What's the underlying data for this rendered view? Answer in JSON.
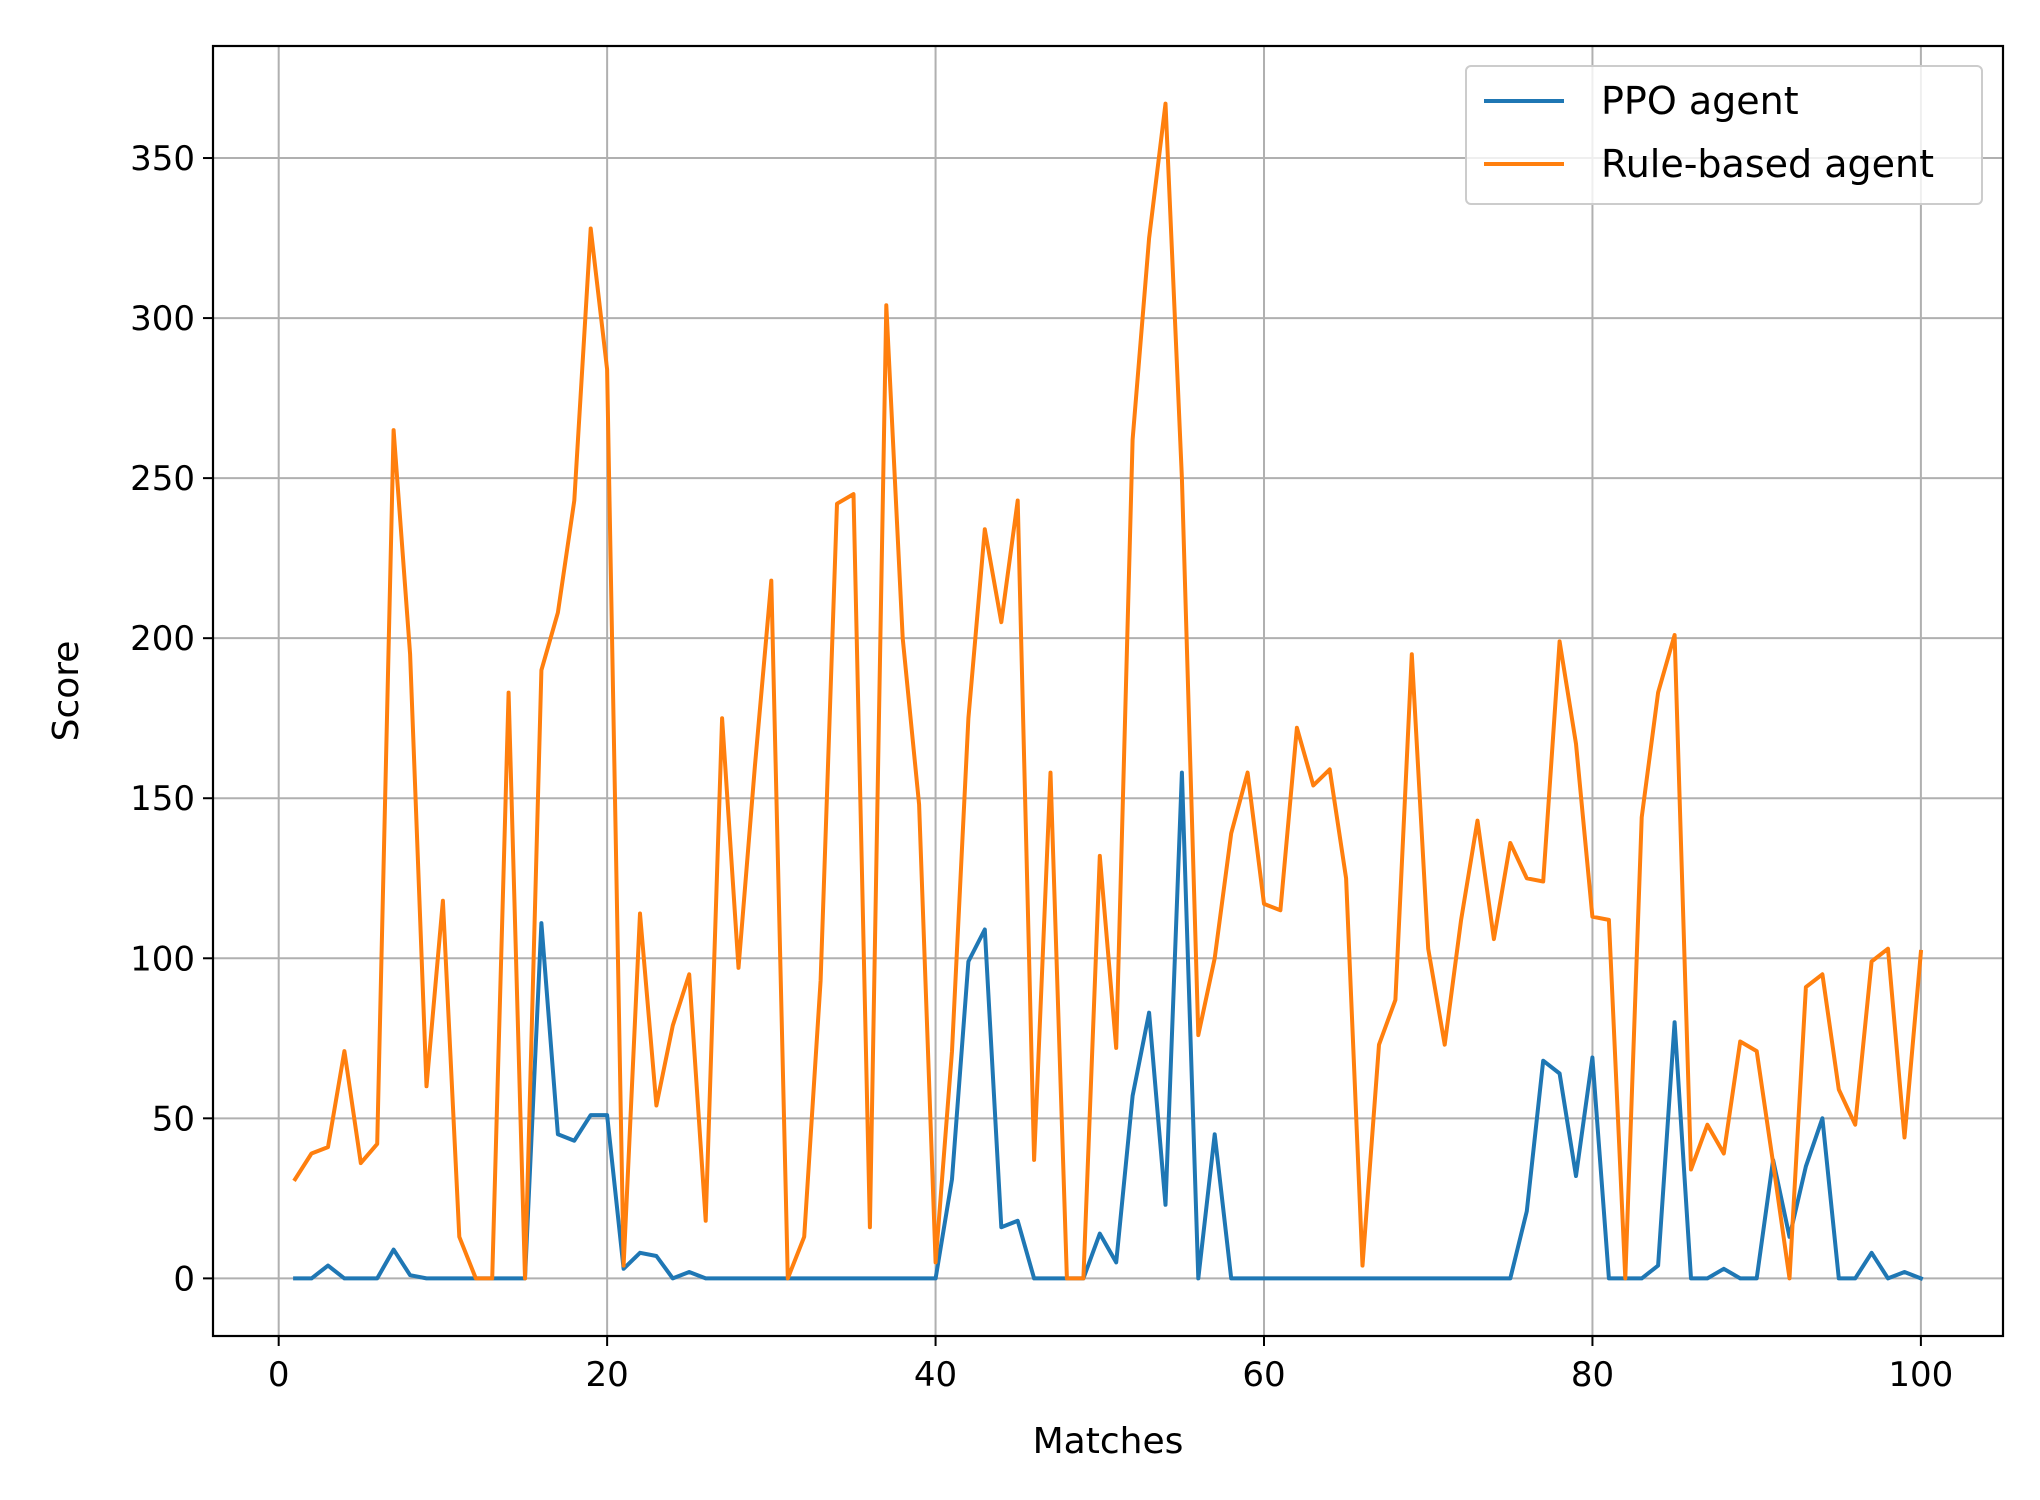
{
  "chart_data": {
    "type": "line",
    "title": "",
    "xlabel": "Matches",
    "ylabel": "Score",
    "xlim": [
      -4,
      105
    ],
    "ylim": [
      -18,
      385
    ],
    "xticks": [
      0,
      20,
      40,
      60,
      80,
      100
    ],
    "yticks": [
      0,
      50,
      100,
      150,
      200,
      250,
      300,
      350
    ],
    "grid": true,
    "legend_position": "top-right",
    "x": [
      1,
      2,
      3,
      4,
      5,
      6,
      7,
      8,
      9,
      10,
      11,
      12,
      13,
      14,
      15,
      16,
      17,
      18,
      19,
      20,
      21,
      22,
      23,
      24,
      25,
      26,
      27,
      28,
      29,
      30,
      31,
      32,
      33,
      34,
      35,
      36,
      37,
      38,
      39,
      40,
      41,
      42,
      43,
      44,
      45,
      46,
      47,
      48,
      49,
      50,
      51,
      52,
      53,
      54,
      55,
      56,
      57,
      58,
      59,
      60,
      61,
      62,
      63,
      64,
      65,
      66,
      67,
      68,
      69,
      70,
      71,
      72,
      73,
      74,
      75,
      76,
      77,
      78,
      79,
      80,
      81,
      82,
      83,
      84,
      85,
      86,
      87,
      88,
      89,
      90,
      91,
      92,
      93,
      94,
      95,
      96,
      97,
      98,
      99,
      100
    ],
    "series": [
      {
        "name": "PPO agent",
        "color": "#1f77b4",
        "values": [
          0,
          0,
          4,
          0,
          0,
          0,
          9,
          1,
          0,
          0,
          0,
          0,
          0,
          0,
          0,
          111,
          45,
          43,
          51,
          51,
          3,
          8,
          7,
          0,
          2,
          0,
          0,
          0,
          0,
          0,
          0,
          0,
          0,
          0,
          0,
          0,
          0,
          0,
          0,
          0,
          31,
          99,
          109,
          16,
          18,
          0,
          0,
          0,
          0,
          14,
          5,
          57,
          83,
          23,
          158,
          0,
          45,
          0,
          0,
          0,
          0,
          0,
          0,
          0,
          0,
          0,
          0,
          0,
          0,
          0,
          0,
          0,
          0,
          0,
          0,
          21,
          68,
          64,
          32,
          69,
          0,
          0,
          0,
          4,
          80,
          0,
          0,
          3,
          0,
          0,
          37,
          13,
          35,
          50,
          0,
          0,
          8,
          0,
          2,
          0
        ]
      },
      {
        "name": "Rule-based agent",
        "color": "#ff7f0e",
        "values": [
          31,
          39,
          41,
          71,
          36,
          42,
          265,
          195,
          60,
          118,
          13,
          0,
          0,
          183,
          0,
          190,
          208,
          243,
          328,
          284,
          4,
          114,
          54,
          79,
          95,
          18,
          175,
          97,
          160,
          218,
          0,
          13,
          93,
          242,
          245,
          16,
          304,
          200,
          148,
          5,
          71,
          175,
          234,
          205,
          243,
          37,
          158,
          0,
          0,
          132,
          72,
          262,
          325,
          367,
          250,
          76,
          100,
          139,
          158,
          117,
          115,
          172,
          154,
          159,
          125,
          4,
          73,
          87,
          195,
          103,
          73,
          112,
          143,
          106,
          136,
          125,
          124,
          199,
          167,
          113,
          112,
          0,
          144,
          183,
          201,
          34,
          48,
          39,
          74,
          71,
          36,
          0,
          91,
          95,
          59,
          48,
          99,
          103,
          44,
          102
        ]
      }
    ]
  }
}
